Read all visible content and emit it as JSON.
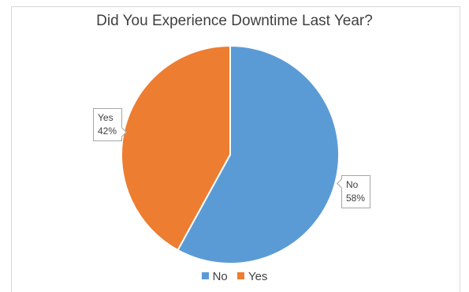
{
  "chart_data": {
    "type": "pie",
    "title": "Did You Experience Downtime Last Year?",
    "categories": [
      "No",
      "Yes"
    ],
    "values": [
      58,
      42
    ],
    "data_labels": [
      {
        "category": "No",
        "percent": "58%"
      },
      {
        "category": "Yes",
        "percent": "42%"
      }
    ],
    "colors": [
      "#5b9bd5",
      "#ed7d31"
    ],
    "start_angle_deg": 0,
    "direction": "clockwise",
    "legend": {
      "position": "bottom",
      "entries": [
        "No",
        "Yes"
      ]
    }
  }
}
